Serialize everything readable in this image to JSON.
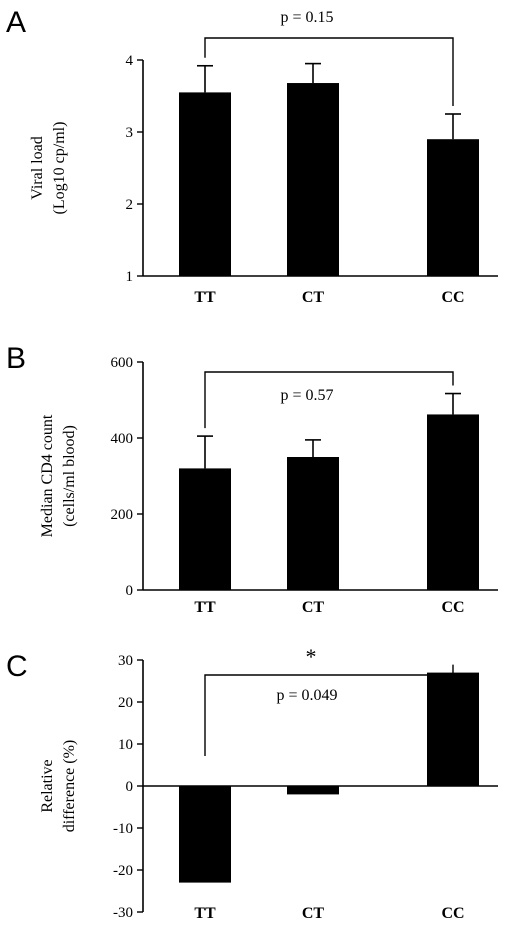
{
  "chart_data": [
    {
      "type": "bar",
      "panel_label": "A",
      "categories": [
        "TT",
        "CT",
        "CC"
      ],
      "values": [
        3.55,
        3.68,
        2.9
      ],
      "errors": [
        0.37,
        0.27,
        0.35
      ],
      "ylabel_line1": "Viral load",
      "ylabel_line2": "(Log10 cp/ml)",
      "ylim": [
        1,
        4
      ],
      "yticks": [
        "1",
        "2",
        "3",
        "4"
      ],
      "ytick_values": [
        1,
        2,
        3,
        4
      ],
      "annotation": {
        "text": "p = 0.15",
        "from": "TT",
        "to": "CC"
      },
      "bar_color": "#000000"
    },
    {
      "type": "bar",
      "panel_label": "B",
      "categories": [
        "TT",
        "CT",
        "CC"
      ],
      "values": [
        320,
        350,
        462
      ],
      "errors": [
        85,
        45,
        55
      ],
      "ylabel_line1": "Median CD4 count",
      "ylabel_line2": "(cells/ml blood)",
      "ylim": [
        0,
        600
      ],
      "yticks": [
        "0",
        "200",
        "400",
        "600"
      ],
      "ytick_values": [
        0,
        200,
        400,
        600
      ],
      "annotation": {
        "text": "p = 0.57",
        "from": "TT",
        "to": "CC"
      },
      "bar_color": "#000000"
    },
    {
      "type": "bar",
      "panel_label": "C",
      "categories": [
        "TT",
        "CT",
        "CC"
      ],
      "values": [
        -23,
        -2,
        27
      ],
      "errors": [
        0,
        0,
        0
      ],
      "ylabel_line1": "Relative",
      "ylabel_line2": "difference  (%)",
      "ylim": [
        -30,
        30
      ],
      "yticks": [
        "-30",
        "-20",
        "-10",
        "0",
        "10",
        "20",
        "30"
      ],
      "ytick_values": [
        -30,
        -20,
        -10,
        0,
        10,
        20,
        30
      ],
      "annotation": {
        "text": "p = 0.049",
        "significance": "*",
        "from": "TT",
        "to": "CC"
      },
      "bar_color": "#000000"
    }
  ]
}
